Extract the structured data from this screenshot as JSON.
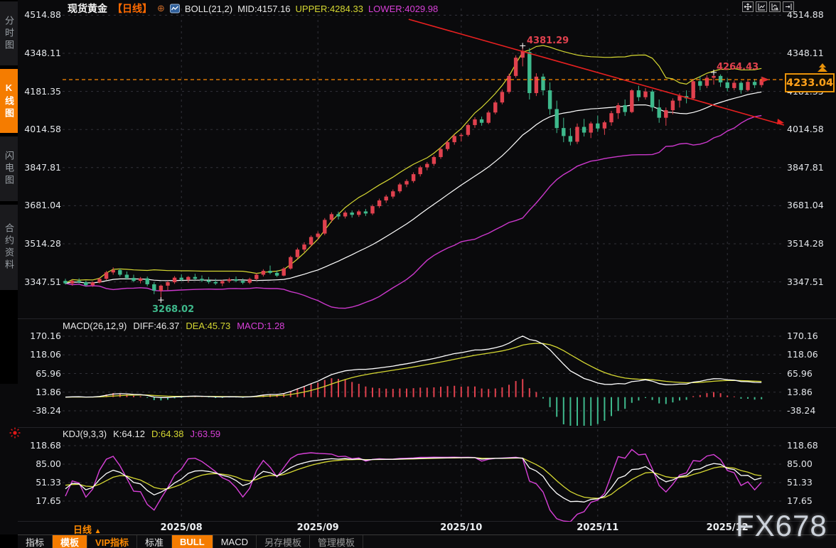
{
  "app": {
    "watermark": "FX678",
    "accent": "#f57c00"
  },
  "sidebar": {
    "items": [
      {
        "label": "分时图",
        "active": false
      },
      {
        "label": "K线图",
        "active": true
      },
      {
        "label": "闪电图",
        "active": false
      },
      {
        "label": "合约资料",
        "active": false
      }
    ]
  },
  "header": {
    "symbol": "现货黄金",
    "period_tag": "【日线】",
    "expand_icon": "⊕",
    "boll": "BOLL(21,2)",
    "mid": "MID:4157.16",
    "upper": "UPPER:4284.33",
    "lower": "LOWER:4029.98"
  },
  "toolbar_icons": [
    "crosshair",
    "scale-axis",
    "shift-axis",
    "goto-latest"
  ],
  "annotations": {
    "high": "4381.29",
    "recent_high": "4264.43",
    "low": "3268.02",
    "last_price": "4233.04"
  },
  "macd_panel": {
    "title": "MACD(26,12,9)",
    "diff": "DIFF:46.37",
    "dea": "DEA:45.73",
    "macd": "MACD:1.28"
  },
  "kdj_panel": {
    "title": "KDJ(9,3,3)",
    "k": "K:64.12",
    "d": "D:64.38",
    "j": "J:63.59"
  },
  "x_axis": {
    "period": "日线",
    "arrow": "▲"
  },
  "bottom_bar": {
    "items": [
      {
        "label": "指标",
        "style": "plain"
      },
      {
        "label": "模板",
        "style": "active"
      },
      {
        "label": "VIP指标",
        "style": "orange-text"
      },
      {
        "label": "标准",
        "style": "plain"
      },
      {
        "label": "BULL",
        "style": "active"
      },
      {
        "label": "MACD",
        "style": "plain"
      },
      {
        "label": "另存模板",
        "style": "muted"
      },
      {
        "label": "管理模板",
        "style": "muted"
      }
    ]
  },
  "chart_data": {
    "type": "candlestick",
    "title": "现货黄金 日线 (Spot Gold Daily)",
    "panels": [
      "price+BOLL(21,2)",
      "MACD(26,12,9)",
      "KDJ(9,3,3)"
    ],
    "price_ticks": [
      4514.88,
      4348.11,
      4181.35,
      4014.58,
      3847.81,
      3681.04,
      3514.28,
      3347.51
    ],
    "x_ticks": [
      {
        "index": 17,
        "label": "2025/08"
      },
      {
        "index": 37,
        "label": "2025/09"
      },
      {
        "index": 58,
        "label": "2025/10"
      },
      {
        "index": 78,
        "label": "2025/11"
      },
      {
        "index": 97,
        "label": "2025/12"
      }
    ],
    "last_price": 4233.04,
    "boll": {
      "period": 21,
      "mult": 2,
      "mid": 4157.16,
      "upper": 4284.33,
      "lower": 4029.98
    },
    "macd": {
      "fast": 26,
      "slow": 12,
      "signal": 9,
      "diff": 46.37,
      "dea": 45.73,
      "macd": 1.28,
      "ticks": [
        170.16,
        118.06,
        65.96,
        13.86,
        -38.24
      ]
    },
    "kdj": {
      "n": 9,
      "m1": 3,
      "m2": 3,
      "k": 64.12,
      "d": 64.38,
      "j": 63.59,
      "ticks": [
        118.68,
        85.0,
        51.33,
        17.65
      ]
    },
    "markers": {
      "high": {
        "index": 67,
        "price": 4381.29
      },
      "recent_high": {
        "index": 95,
        "price": 4264.43
      },
      "low": {
        "index": 14,
        "price": 3268.02
      }
    },
    "trendline": {
      "i1": 50.3,
      "p1": 4497,
      "i2": 105.3,
      "p2": 4034
    },
    "colors": {
      "up": "#e0414e",
      "down": "#3eb98c",
      "boll_mid": "#ffffff",
      "boll_upper": "#d6d832",
      "boll_lower": "#cc38cc",
      "trend": "#e82020",
      "last_line": "#ff8a00",
      "diff": "#ffffff",
      "dea": "#d6d832",
      "j_line": "#d840d8",
      "grid": "#3a3a42"
    },
    "candles": [
      [
        3352,
        3361,
        3336,
        3341
      ],
      [
        3341,
        3357,
        3331,
        3352
      ],
      [
        3352,
        3363,
        3341,
        3346
      ],
      [
        3346,
        3352,
        3327,
        3333
      ],
      [
        3333,
        3349,
        3326,
        3345
      ],
      [
        3345,
        3367,
        3341,
        3361
      ],
      [
        3361,
        3396,
        3356,
        3389
      ],
      [
        3389,
        3411,
        3379,
        3399
      ],
      [
        3399,
        3406,
        3371,
        3379
      ],
      [
        3379,
        3393,
        3357,
        3365
      ],
      [
        3365,
        3379,
        3346,
        3352
      ],
      [
        3352,
        3369,
        3341,
        3363
      ],
      [
        3363,
        3371,
        3329,
        3337
      ],
      [
        3337,
        3346,
        3294,
        3309
      ],
      [
        3309,
        3336,
        3268.02,
        3331
      ],
      [
        3331,
        3353,
        3311,
        3346
      ],
      [
        3346,
        3373,
        3339,
        3366
      ],
      [
        3366,
        3381,
        3351,
        3357
      ],
      [
        3357,
        3373,
        3344,
        3369
      ],
      [
        3369,
        3383,
        3356,
        3361
      ],
      [
        3361,
        3376,
        3347,
        3354
      ],
      [
        3354,
        3369,
        3339,
        3347
      ],
      [
        3347,
        3361,
        3334,
        3341
      ],
      [
        3341,
        3357,
        3329,
        3351
      ],
      [
        3351,
        3366,
        3343,
        3359
      ],
      [
        3359,
        3371,
        3346,
        3352
      ],
      [
        3352,
        3363,
        3337,
        3344
      ],
      [
        3344,
        3366,
        3338,
        3360
      ],
      [
        3360,
        3386,
        3353,
        3379
      ],
      [
        3379,
        3403,
        3371,
        3396
      ],
      [
        3396,
        3419,
        3381,
        3387
      ],
      [
        3387,
        3398,
        3369,
        3375
      ],
      [
        3375,
        3412,
        3372,
        3406
      ],
      [
        3406,
        3462,
        3401,
        3456
      ],
      [
        3456,
        3497,
        3448,
        3489
      ],
      [
        3489,
        3521,
        3478,
        3511
      ],
      [
        3511,
        3551,
        3502,
        3544
      ],
      [
        3544,
        3568,
        3531,
        3559
      ],
      [
        3559,
        3627,
        3552,
        3619
      ],
      [
        3619,
        3652,
        3608,
        3644
      ],
      [
        3644,
        3655,
        3621,
        3634
      ],
      [
        3634,
        3659,
        3625,
        3651
      ],
      [
        3651,
        3660,
        3629,
        3641
      ],
      [
        3641,
        3663,
        3632,
        3656
      ],
      [
        3656,
        3667,
        3636,
        3647
      ],
      [
        3647,
        3686,
        3640,
        3679
      ],
      [
        3679,
        3712,
        3671,
        3704
      ],
      [
        3704,
        3729,
        3693,
        3721
      ],
      [
        3721,
        3752,
        3712,
        3744
      ],
      [
        3744,
        3781,
        3736,
        3774
      ],
      [
        3774,
        3797,
        3762,
        3789
      ],
      [
        3789,
        3827,
        3781,
        3819
      ],
      [
        3819,
        3856,
        3809,
        3849
      ],
      [
        3849,
        3872,
        3836,
        3864
      ],
      [
        3864,
        3901,
        3855,
        3894
      ],
      [
        3894,
        3937,
        3886,
        3929
      ],
      [
        3929,
        3967,
        3921,
        3959
      ],
      [
        3959,
        3993,
        3948,
        3986
      ],
      [
        3986,
        3999,
        3962,
        3991
      ],
      [
        3991,
        4041,
        3984,
        4034
      ],
      [
        4034,
        4068,
        4022,
        4059
      ],
      [
        4059,
        4071,
        4031,
        4044
      ],
      [
        4044,
        4097,
        4038,
        4089
      ],
      [
        4089,
        4141,
        4081,
        4133
      ],
      [
        4133,
        4189,
        4125,
        4179
      ],
      [
        4179,
        4259,
        4171,
        4249
      ],
      [
        4249,
        4339,
        4241,
        4329
      ],
      [
        4329,
        4381.29,
        4291,
        4359
      ],
      [
        4354,
        4371,
        4146,
        4174
      ],
      [
        4174,
        4261,
        4161,
        4246
      ],
      [
        4246,
        4259,
        4164,
        4186
      ],
      [
        4186,
        4221,
        4079,
        4104
      ],
      [
        4104,
        4141,
        3999,
        4021
      ],
      [
        4021,
        4066,
        3959,
        3986
      ],
      [
        3986,
        4021,
        3945,
        3961
      ],
      [
        3961,
        4041,
        3951,
        4026
      ],
      [
        4026,
        4061,
        3984,
        4001
      ],
      [
        4001,
        4049,
        3977,
        4041
      ],
      [
        4041,
        4076,
        4004,
        4019
      ],
      [
        4019,
        4053,
        3991,
        4046
      ],
      [
        4046,
        4096,
        4031,
        4086
      ],
      [
        4086,
        4131,
        4061,
        4121
      ],
      [
        4121,
        4146,
        4074,
        4091
      ],
      [
        4091,
        4191,
        4086,
        4186
      ],
      [
        4186,
        4206,
        4139,
        4156
      ],
      [
        4156,
        4196,
        4146,
        4181
      ],
      [
        4181,
        4189,
        4094,
        4111
      ],
      [
        4111,
        4146,
        4044,
        4066
      ],
      [
        4066,
        4111,
        4031,
        4099
      ],
      [
        4099,
        4151,
        4081,
        4141
      ],
      [
        4141,
        4173,
        4111,
        4161
      ],
      [
        4161,
        4186,
        4129,
        4151
      ],
      [
        4151,
        4236,
        4146,
        4226
      ],
      [
        4226,
        4249,
        4186,
        4206
      ],
      [
        4206,
        4253,
        4196,
        4241
      ],
      [
        4241,
        4264.43,
        4211,
        4249
      ],
      [
        4249,
        4256,
        4201,
        4221
      ],
      [
        4221,
        4239,
        4181,
        4196
      ],
      [
        4196,
        4229,
        4186,
        4219
      ],
      [
        4219,
        4226,
        4171,
        4187
      ],
      [
        4187,
        4231,
        4181,
        4223
      ],
      [
        4223,
        4236,
        4196,
        4209
      ],
      [
        4209,
        4246,
        4199,
        4233.04
      ]
    ]
  }
}
